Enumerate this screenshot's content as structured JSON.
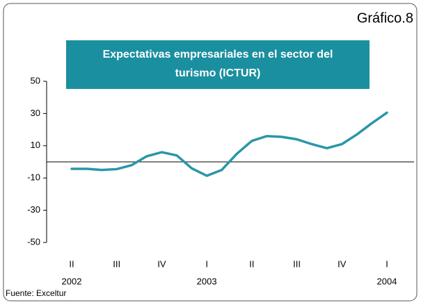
{
  "chart_data": {
    "type": "line",
    "label": "Gráfico.8",
    "title": [
      "Expectativas empresariales en el sector del",
      "turismo (ICTUR)"
    ],
    "source": "Fuente: Exceltur",
    "categories": [
      "II",
      null,
      null,
      "III",
      null,
      null,
      "IV",
      null,
      null,
      "I",
      null,
      null,
      "II",
      null,
      null,
      "III",
      null,
      null,
      "IV",
      null,
      null,
      "I"
    ],
    "years": [
      "2002",
      null,
      null,
      null,
      null,
      null,
      null,
      null,
      null,
      "2003",
      null,
      null,
      null,
      null,
      null,
      null,
      null,
      null,
      null,
      null,
      null,
      "2004"
    ],
    "series": [
      {
        "color": "#2a96a8",
        "values": [
          -4.3,
          -4.3,
          -5,
          -4.5,
          -2,
          3.5,
          6,
          4,
          -4,
          -8.6,
          -5,
          5,
          13,
          16,
          15.5,
          14,
          11,
          8.5,
          11,
          17,
          24,
          30.5
        ]
      }
    ],
    "ylim": [
      -50,
      50
    ],
    "yticks": [
      -50,
      -30,
      -10,
      10,
      30,
      50
    ]
  }
}
